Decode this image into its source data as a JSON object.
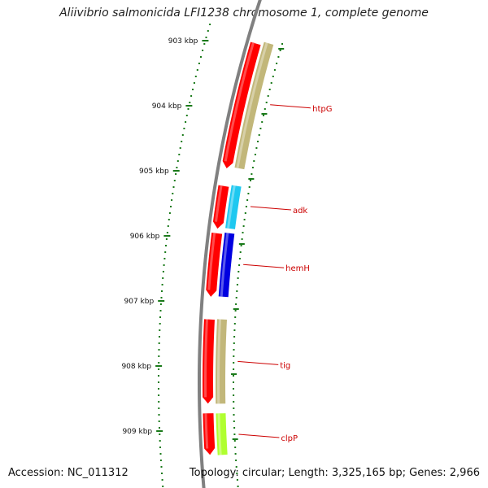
{
  "title": "Aliivibrio salmonicida LFI1238 chromosome 1, complete genome",
  "accession": "Accession: NC_011312",
  "topology": "Topology: circular; Length: 3,325,165 bp; Genes: 2,966",
  "colors": {
    "backbone": "#808080",
    "tick": "#1a7a1a",
    "cds": "#ff0000",
    "label_line": "#cc0000"
  },
  "ticks": [
    {
      "label": "903 kbp",
      "position_kbp": 903
    },
    {
      "label": "904 kbp",
      "position_kbp": 904
    },
    {
      "label": "905 kbp",
      "position_kbp": 905
    },
    {
      "label": "906 kbp",
      "position_kbp": 906
    },
    {
      "label": "907 kbp",
      "position_kbp": 907
    },
    {
      "label": "908 kbp",
      "position_kbp": 908
    },
    {
      "label": "909 kbp",
      "position_kbp": 909
    }
  ],
  "genes": [
    {
      "name": "htpG",
      "start_kbp": 903.02,
      "end_kbp": 904.95,
      "color": "#c2b77a"
    },
    {
      "name": "adk",
      "start_kbp": 905.22,
      "end_kbp": 905.88,
      "color": "#1ec8f0"
    },
    {
      "name": "hemH",
      "start_kbp": 905.95,
      "end_kbp": 906.93,
      "color": "#0000e0"
    },
    {
      "name": "tig",
      "start_kbp": 907.28,
      "end_kbp": 908.58,
      "color": "#c2b77a"
    },
    {
      "name": "clpP",
      "start_kbp": 908.73,
      "end_kbp": 909.37,
      "color": "#b0ff30"
    }
  ]
}
